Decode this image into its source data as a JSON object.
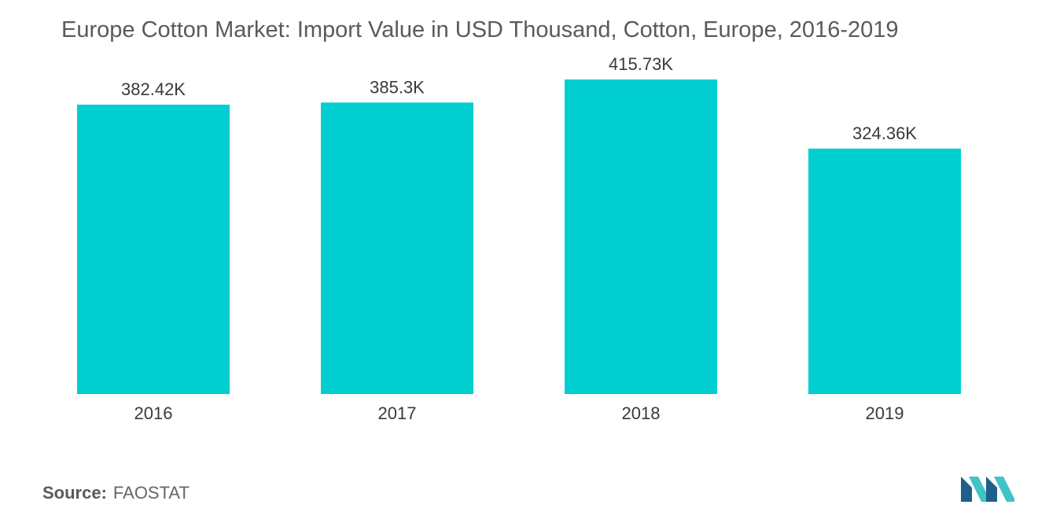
{
  "chart_data": {
    "type": "bar",
    "title": "Europe Cotton Market: Import Value in USD Thousand, Cotton, Europe, 2016-2019",
    "categories": [
      "2016",
      "2017",
      "2018",
      "2019"
    ],
    "values": [
      382.42,
      385.3,
      415.73,
      324.36
    ],
    "value_labels": [
      "382.42K",
      "385.3K",
      "415.73K",
      "324.36K"
    ],
    "xlabel": "",
    "ylabel": "",
    "ylim": [
      0,
      500
    ],
    "grid": false,
    "bar_color": "#00ced1"
  },
  "footer": {
    "source_label": "Source:",
    "source_value": "FAOSTAT"
  },
  "colors": {
    "logo_dark": "#1f5f8b",
    "logo_light": "#41c3c8"
  }
}
